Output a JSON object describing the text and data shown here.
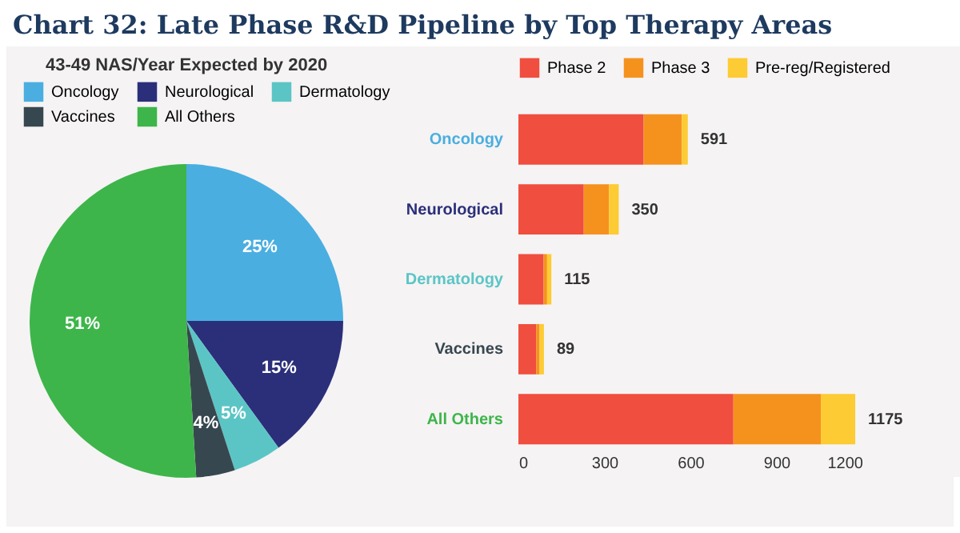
{
  "chart_data": [
    {
      "type": "pie",
      "title": "Chart 32: Late Phase R&D Pipeline by Top Therapy Areas",
      "subtitle": "43-49 NAS/Year Expected by 2020",
      "categories": [
        "Oncology",
        "Neurological",
        "Dermatology",
        "Vaccines",
        "All Others"
      ],
      "values": [
        25,
        15,
        5,
        4,
        51
      ],
      "colors": [
        "#4aaee0",
        "#2b2f7a",
        "#5bc5c5",
        "#37474f",
        "#3db54a"
      ],
      "value_labels": [
        "25%",
        "15%",
        "5%",
        "4%",
        "51%"
      ],
      "legend": "top"
    },
    {
      "type": "bar",
      "orientation": "horizontal",
      "stacked": true,
      "categories": [
        "Oncology",
        "Neurological",
        "Dermatology",
        "Vaccines",
        "All Others"
      ],
      "series": [
        {
          "name": "Phase 2",
          "color": "#f04e3e",
          "values": [
            437,
            228,
            88,
            62,
            750
          ]
        },
        {
          "name": "Phase 3",
          "color": "#f5921e",
          "values": [
            133,
            88,
            12,
            12,
            305
          ]
        },
        {
          "name": "Pre-reg/Registered",
          "color": "#fdcb33",
          "values": [
            21,
            34,
            15,
            15,
            120
          ]
        }
      ],
      "totals": [
        "591",
        "350",
        "115",
        "89",
        "1175"
      ],
      "xlim": [
        0,
        1200
      ],
      "xticks": [
        0,
        300,
        600,
        900,
        1200
      ],
      "legend": "top",
      "grid": false
    }
  ]
}
